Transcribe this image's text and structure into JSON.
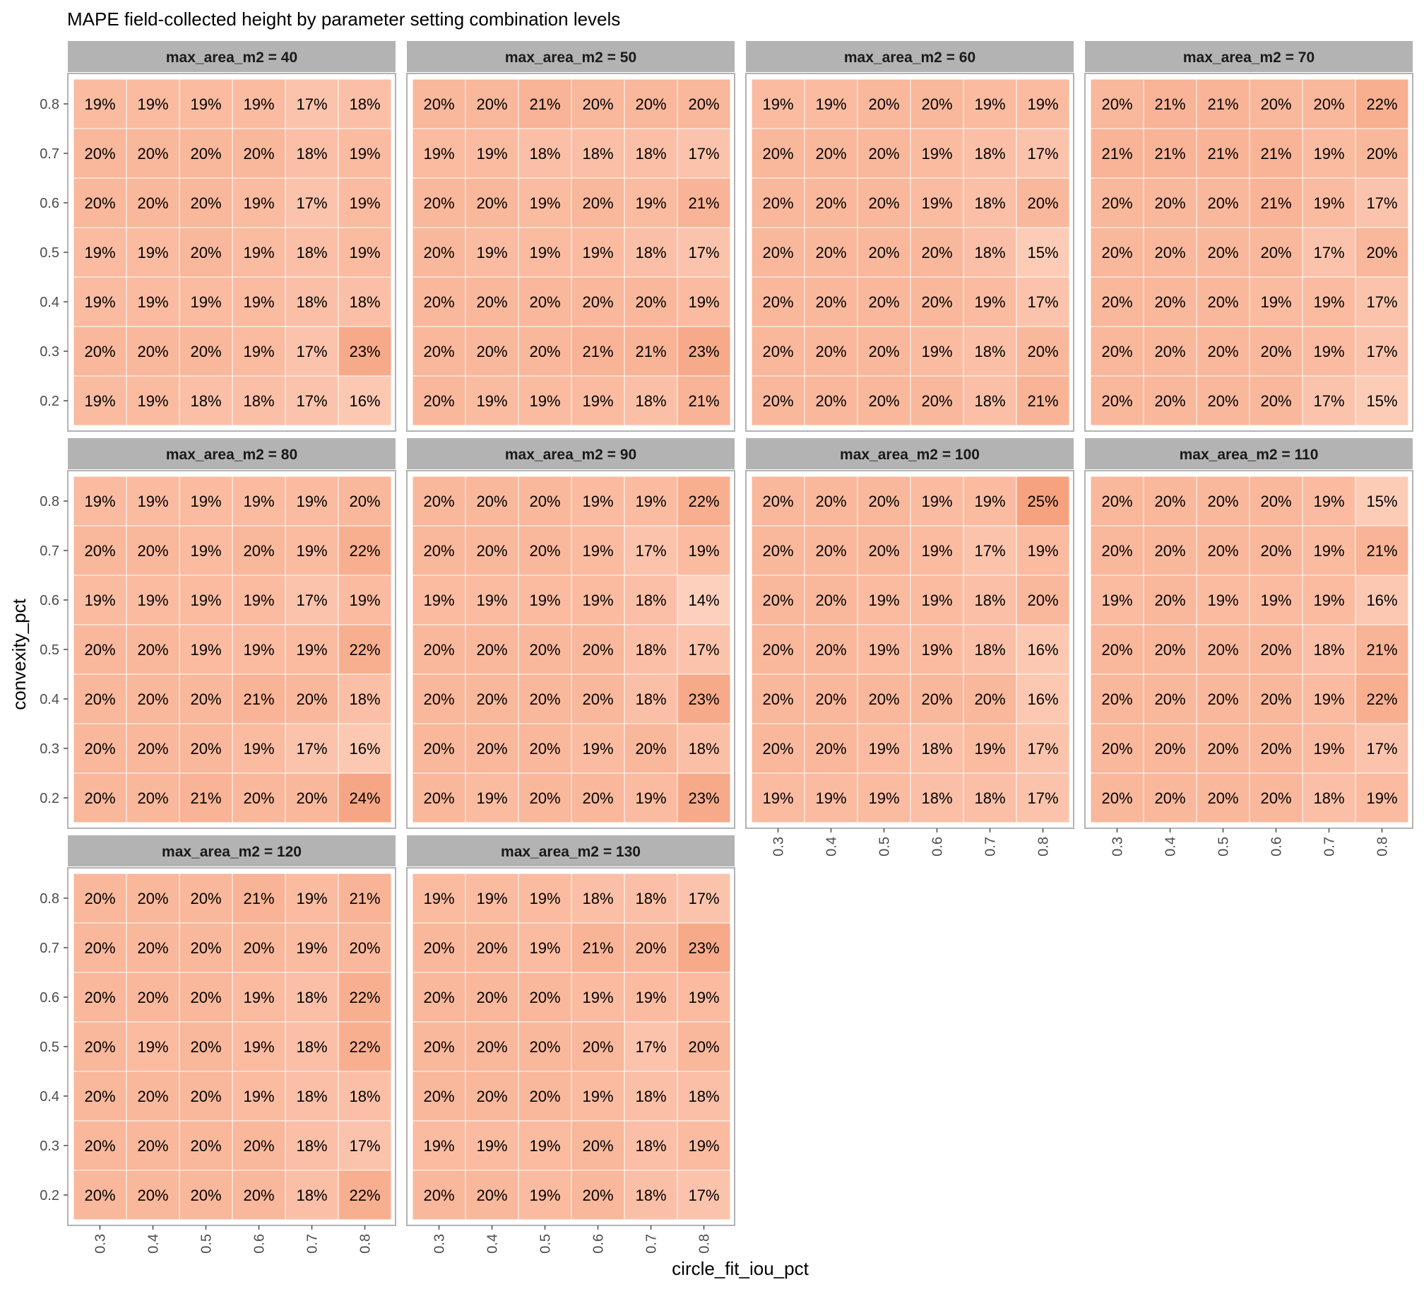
{
  "chart_data": {
    "type": "heatmap",
    "title": "MAPE field-collected height by parameter setting combination levels",
    "xlabel": "circle_fit_iou_pct",
    "ylabel": "convexity_pct",
    "x": [
      "0.3",
      "0.4",
      "0.5",
      "0.6",
      "0.7",
      "0.8"
    ],
    "y": [
      "0.2",
      "0.3",
      "0.4",
      "0.5",
      "0.6",
      "0.7",
      "0.8"
    ],
    "facet_variable": "max_area_m2",
    "value_format": "percent",
    "color_low": "#fdd0bd",
    "color_high": "#f6a27f",
    "legend": "none",
    "facets": [
      {
        "label": "max_area_m2 = 40",
        "rows": [
          {
            "y": "0.8",
            "values": [
              19,
              19,
              19,
              19,
              17,
              18
            ]
          },
          {
            "y": "0.7",
            "values": [
              20,
              20,
              20,
              20,
              18,
              19
            ]
          },
          {
            "y": "0.6",
            "values": [
              20,
              20,
              20,
              19,
              17,
              19
            ]
          },
          {
            "y": "0.5",
            "values": [
              19,
              19,
              20,
              19,
              18,
              19
            ]
          },
          {
            "y": "0.4",
            "values": [
              19,
              19,
              19,
              19,
              18,
              18
            ]
          },
          {
            "y": "0.3",
            "values": [
              20,
              20,
              20,
              19,
              17,
              23
            ]
          },
          {
            "y": "0.2",
            "values": [
              19,
              19,
              18,
              18,
              17,
              16
            ]
          }
        ]
      },
      {
        "label": "max_area_m2 = 50",
        "rows": [
          {
            "y": "0.8",
            "values": [
              20,
              20,
              21,
              20,
              20,
              20
            ]
          },
          {
            "y": "0.7",
            "values": [
              19,
              19,
              18,
              18,
              18,
              17
            ]
          },
          {
            "y": "0.6",
            "values": [
              20,
              20,
              19,
              20,
              19,
              21
            ]
          },
          {
            "y": "0.5",
            "values": [
              20,
              19,
              19,
              19,
              18,
              17
            ]
          },
          {
            "y": "0.4",
            "values": [
              20,
              20,
              20,
              20,
              20,
              19
            ]
          },
          {
            "y": "0.3",
            "values": [
              20,
              20,
              20,
              21,
              21,
              23
            ]
          },
          {
            "y": "0.2",
            "values": [
              20,
              19,
              19,
              19,
              18,
              21
            ]
          }
        ]
      },
      {
        "label": "max_area_m2 = 60",
        "rows": [
          {
            "y": "0.8",
            "values": [
              19,
              19,
              20,
              20,
              19,
              19
            ]
          },
          {
            "y": "0.7",
            "values": [
              20,
              20,
              20,
              19,
              18,
              17
            ]
          },
          {
            "y": "0.6",
            "values": [
              20,
              20,
              20,
              19,
              18,
              20
            ]
          },
          {
            "y": "0.5",
            "values": [
              20,
              20,
              20,
              20,
              18,
              15
            ]
          },
          {
            "y": "0.4",
            "values": [
              20,
              20,
              20,
              20,
              19,
              17
            ]
          },
          {
            "y": "0.3",
            "values": [
              20,
              20,
              20,
              19,
              18,
              20
            ]
          },
          {
            "y": "0.2",
            "values": [
              20,
              20,
              20,
              20,
              18,
              21
            ]
          }
        ]
      },
      {
        "label": "max_area_m2 = 70",
        "rows": [
          {
            "y": "0.8",
            "values": [
              20,
              21,
              21,
              20,
              20,
              22
            ]
          },
          {
            "y": "0.7",
            "values": [
              21,
              21,
              21,
              21,
              19,
              20
            ]
          },
          {
            "y": "0.6",
            "values": [
              20,
              20,
              20,
              21,
              19,
              17
            ]
          },
          {
            "y": "0.5",
            "values": [
              20,
              20,
              20,
              20,
              17,
              20
            ]
          },
          {
            "y": "0.4",
            "values": [
              20,
              20,
              20,
              19,
              19,
              17
            ]
          },
          {
            "y": "0.3",
            "values": [
              20,
              20,
              20,
              20,
              19,
              17
            ]
          },
          {
            "y": "0.2",
            "values": [
              20,
              20,
              20,
              20,
              17,
              15
            ]
          }
        ]
      },
      {
        "label": "max_area_m2 = 80",
        "rows": [
          {
            "y": "0.8",
            "values": [
              19,
              19,
              19,
              19,
              19,
              20
            ]
          },
          {
            "y": "0.7",
            "values": [
              20,
              20,
              19,
              20,
              19,
              22
            ]
          },
          {
            "y": "0.6",
            "values": [
              19,
              19,
              19,
              19,
              17,
              19
            ]
          },
          {
            "y": "0.5",
            "values": [
              20,
              20,
              19,
              19,
              19,
              22
            ]
          },
          {
            "y": "0.4",
            "values": [
              20,
              20,
              20,
              21,
              20,
              18
            ]
          },
          {
            "y": "0.3",
            "values": [
              20,
              20,
              20,
              19,
              17,
              16
            ]
          },
          {
            "y": "0.2",
            "values": [
              20,
              20,
              21,
              20,
              20,
              24
            ]
          }
        ]
      },
      {
        "label": "max_area_m2 = 90",
        "rows": [
          {
            "y": "0.8",
            "values": [
              20,
              20,
              20,
              19,
              19,
              22
            ]
          },
          {
            "y": "0.7",
            "values": [
              20,
              20,
              20,
              19,
              17,
              19
            ]
          },
          {
            "y": "0.6",
            "values": [
              19,
              19,
              19,
              19,
              18,
              14
            ]
          },
          {
            "y": "0.5",
            "values": [
              20,
              20,
              20,
              20,
              18,
              17
            ]
          },
          {
            "y": "0.4",
            "values": [
              20,
              20,
              20,
              20,
              18,
              23
            ]
          },
          {
            "y": "0.3",
            "values": [
              20,
              20,
              20,
              19,
              20,
              18
            ]
          },
          {
            "y": "0.2",
            "values": [
              20,
              19,
              20,
              20,
              19,
              23
            ]
          }
        ]
      },
      {
        "label": "max_area_m2 = 100",
        "rows": [
          {
            "y": "0.8",
            "values": [
              20,
              20,
              20,
              19,
              19,
              25
            ]
          },
          {
            "y": "0.7",
            "values": [
              20,
              20,
              20,
              19,
              17,
              19
            ]
          },
          {
            "y": "0.6",
            "values": [
              20,
              20,
              19,
              19,
              18,
              20
            ]
          },
          {
            "y": "0.5",
            "values": [
              20,
              20,
              19,
              19,
              18,
              16
            ]
          },
          {
            "y": "0.4",
            "values": [
              20,
              20,
              20,
              20,
              20,
              16
            ]
          },
          {
            "y": "0.3",
            "values": [
              20,
              20,
              19,
              18,
              19,
              17
            ]
          },
          {
            "y": "0.2",
            "values": [
              19,
              19,
              19,
              18,
              18,
              17
            ]
          }
        ]
      },
      {
        "label": "max_area_m2 = 110",
        "rows": [
          {
            "y": "0.8",
            "values": [
              20,
              20,
              20,
              20,
              19,
              15
            ]
          },
          {
            "y": "0.7",
            "values": [
              20,
              20,
              20,
              20,
              19,
              21
            ]
          },
          {
            "y": "0.6",
            "values": [
              19,
              20,
              19,
              19,
              19,
              16
            ]
          },
          {
            "y": "0.5",
            "values": [
              20,
              20,
              20,
              20,
              18,
              21
            ]
          },
          {
            "y": "0.4",
            "values": [
              20,
              20,
              20,
              20,
              19,
              22
            ]
          },
          {
            "y": "0.3",
            "values": [
              20,
              20,
              20,
              20,
              19,
              17
            ]
          },
          {
            "y": "0.2",
            "values": [
              20,
              20,
              20,
              20,
              18,
              19
            ]
          }
        ]
      },
      {
        "label": "max_area_m2 = 120",
        "rows": [
          {
            "y": "0.8",
            "values": [
              20,
              20,
              20,
              21,
              19,
              21
            ]
          },
          {
            "y": "0.7",
            "values": [
              20,
              20,
              20,
              20,
              19,
              20
            ]
          },
          {
            "y": "0.6",
            "values": [
              20,
              20,
              20,
              19,
              18,
              22
            ]
          },
          {
            "y": "0.5",
            "values": [
              20,
              19,
              20,
              19,
              18,
              22
            ]
          },
          {
            "y": "0.4",
            "values": [
              20,
              20,
              20,
              19,
              18,
              18
            ]
          },
          {
            "y": "0.3",
            "values": [
              20,
              20,
              20,
              20,
              18,
              17
            ]
          },
          {
            "y": "0.2",
            "values": [
              20,
              20,
              20,
              20,
              18,
              22
            ]
          }
        ]
      },
      {
        "label": "max_area_m2 = 130",
        "rows": [
          {
            "y": "0.8",
            "values": [
              19,
              19,
              19,
              18,
              18,
              17
            ]
          },
          {
            "y": "0.7",
            "values": [
              20,
              20,
              19,
              21,
              20,
              23
            ]
          },
          {
            "y": "0.6",
            "values": [
              20,
              20,
              20,
              19,
              19,
              19
            ]
          },
          {
            "y": "0.5",
            "values": [
              20,
              20,
              20,
              20,
              17,
              20
            ]
          },
          {
            "y": "0.4",
            "values": [
              20,
              20,
              20,
              19,
              18,
              18
            ]
          },
          {
            "y": "0.3",
            "values": [
              19,
              19,
              19,
              20,
              18,
              19
            ]
          },
          {
            "y": "0.2",
            "values": [
              20,
              20,
              19,
              20,
              18,
              17
            ]
          }
        ]
      }
    ]
  }
}
